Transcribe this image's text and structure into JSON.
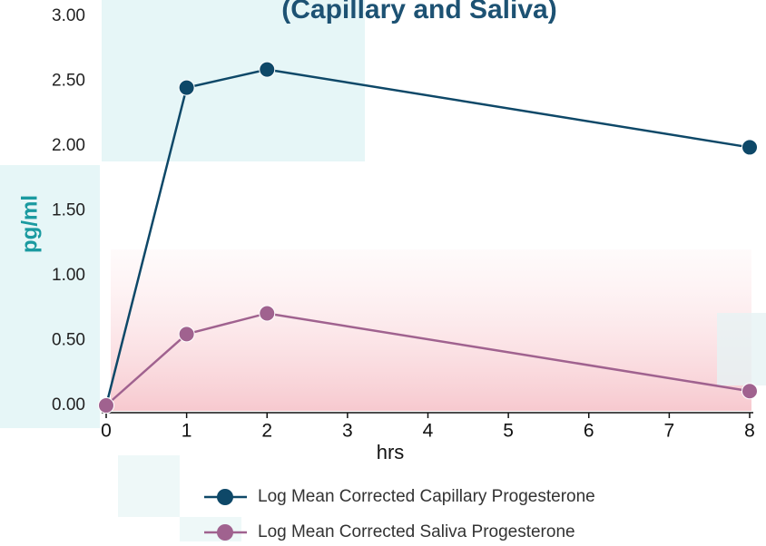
{
  "chart_data": {
    "type": "line",
    "title": "(Capillary and Saliva)",
    "x_label": "hrs",
    "y_label": "pg/ml",
    "x": [
      0,
      1,
      2,
      8
    ],
    "series": [
      {
        "name": "Log Mean Corrected Capillary Progesterone",
        "color": "#0e4868",
        "values": [
          0.0,
          2.45,
          2.59,
          1.99
        ]
      },
      {
        "name": "Log Mean Corrected Saliva Progesterone",
        "color": "#a0628f",
        "values": [
          0.0,
          0.55,
          0.71,
          0.11
        ]
      }
    ],
    "xlim": [
      0,
      8
    ],
    "xticks": [
      0,
      1,
      2,
      3,
      4,
      5,
      6,
      7,
      8
    ],
    "ylim": [
      0,
      3
    ],
    "yticks": [
      {
        "value": 0,
        "label": "0.00"
      },
      {
        "value": 0.5,
        "label": "0.50"
      },
      {
        "value": 1,
        "label": "1.00"
      },
      {
        "value": 1.5,
        "label": "1.50"
      },
      {
        "value": 2,
        "label": "2.00"
      },
      {
        "value": 2.5,
        "label": "2.50"
      },
      {
        "value": 3,
        "label": "3.00"
      }
    ]
  }
}
